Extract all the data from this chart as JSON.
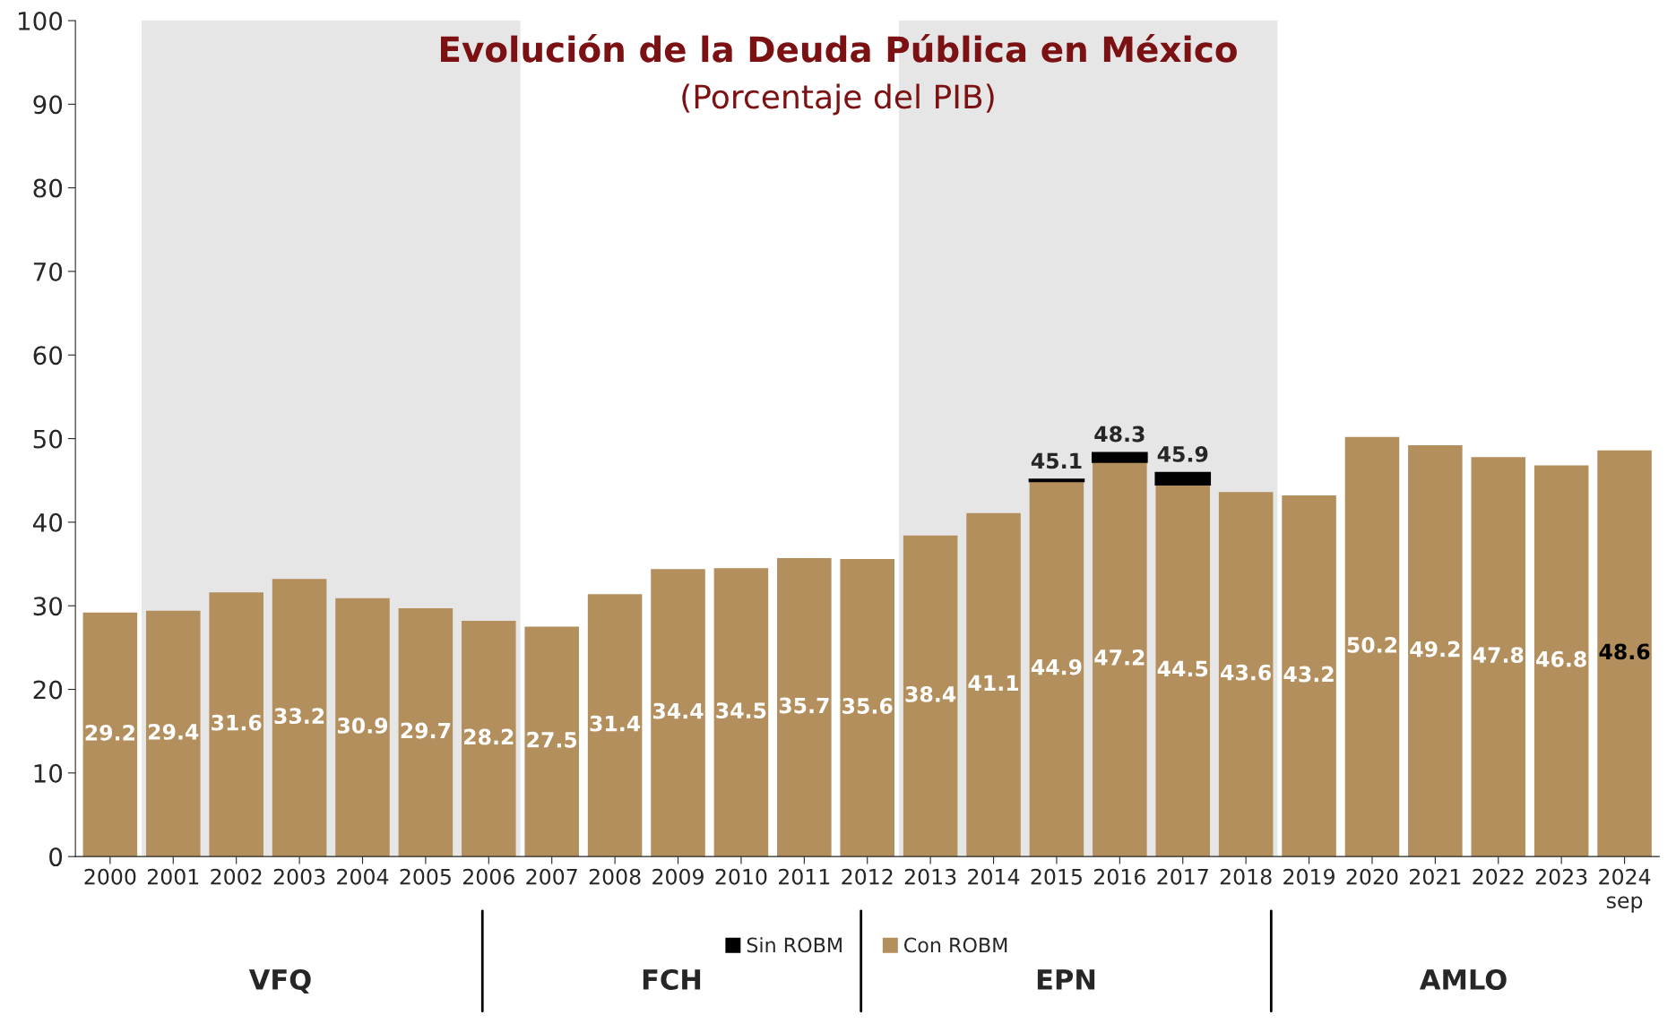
{
  "chart_data": {
    "type": "bar",
    "title": "Evolución de la Deuda Pública en México",
    "subtitle": "(Porcentaje del PIB)",
    "categories": [
      "2000",
      "2001",
      "2002",
      "2003",
      "2004",
      "2005",
      "2006",
      "2007",
      "2008",
      "2009",
      "2010",
      "2011",
      "2012",
      "2013",
      "2014",
      "2015",
      "2016",
      "2017",
      "2018",
      "2019",
      "2020",
      "2021",
      "2022",
      "2023",
      "2024\nsep"
    ],
    "stacked": true,
    "series": [
      {
        "name": "Con ROBM",
        "color": "#b38f5d",
        "values": [
          29.2,
          29.4,
          31.6,
          33.2,
          30.9,
          29.7,
          28.2,
          27.5,
          31.4,
          34.4,
          34.5,
          35.7,
          35.6,
          38.4,
          41.1,
          44.9,
          47.2,
          44.5,
          43.6,
          43.2,
          50.2,
          49.2,
          47.8,
          46.8,
          48.6
        ],
        "data_labels": true
      },
      {
        "name": "Sin ROBM",
        "color": "#000000",
        "values": [
          null,
          null,
          null,
          null,
          null,
          null,
          null,
          null,
          null,
          null,
          null,
          null,
          null,
          null,
          null,
          0.2,
          1.1,
          1.4,
          null,
          null,
          null,
          null,
          null,
          null,
          null
        ]
      }
    ],
    "totals": [
      null,
      null,
      null,
      null,
      null,
      null,
      null,
      null,
      null,
      null,
      null,
      null,
      null,
      null,
      null,
      "45.1",
      "48.3",
      "45.9",
      null,
      null,
      null,
      null,
      null,
      null,
      null
    ],
    "bands": [
      {
        "axis": "x",
        "from": "2001",
        "to": "2006",
        "color": "#e6e6e6"
      },
      {
        "axis": "x",
        "from": "2013",
        "to": "2018",
        "color": "#e6e6e6"
      }
    ],
    "ylim": [
      0,
      100
    ],
    "yticks": [
      0,
      10,
      20,
      30,
      40,
      50,
      60,
      70,
      80,
      90,
      100
    ],
    "grid": false,
    "legend": "bottom",
    "annotations": [
      "VFQ",
      "FCH",
      "EPN",
      "AMLO"
    ]
  }
}
